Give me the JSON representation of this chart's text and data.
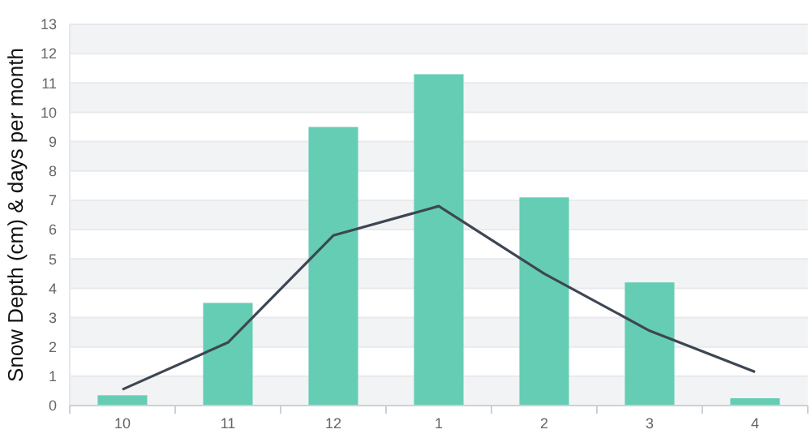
{
  "chart_data": {
    "type": "bar",
    "ylabel": "Snow Depth (cm) & days per month",
    "categories": [
      "10",
      "11",
      "12",
      "1",
      "2",
      "3",
      "4"
    ],
    "series": [
      {
        "color": "#66cdb5",
        "values": [
          0.35,
          3.5,
          9.5,
          11.3,
          7.1,
          4.2,
          0.25
        ]
      },
      {
        "type": "line",
        "color": "#3d4752",
        "values": [
          0.55,
          2.15,
          5.8,
          6.8,
          4.5,
          2.55,
          1.15
        ]
      }
    ],
    "ylim": [
      0,
      13
    ],
    "yticks": [
      0,
      1,
      2,
      3,
      4,
      5,
      6,
      7,
      8,
      9,
      10,
      11,
      12,
      13
    ],
    "grid": "y",
    "marker": "none",
    "line_style": "solid"
  }
}
